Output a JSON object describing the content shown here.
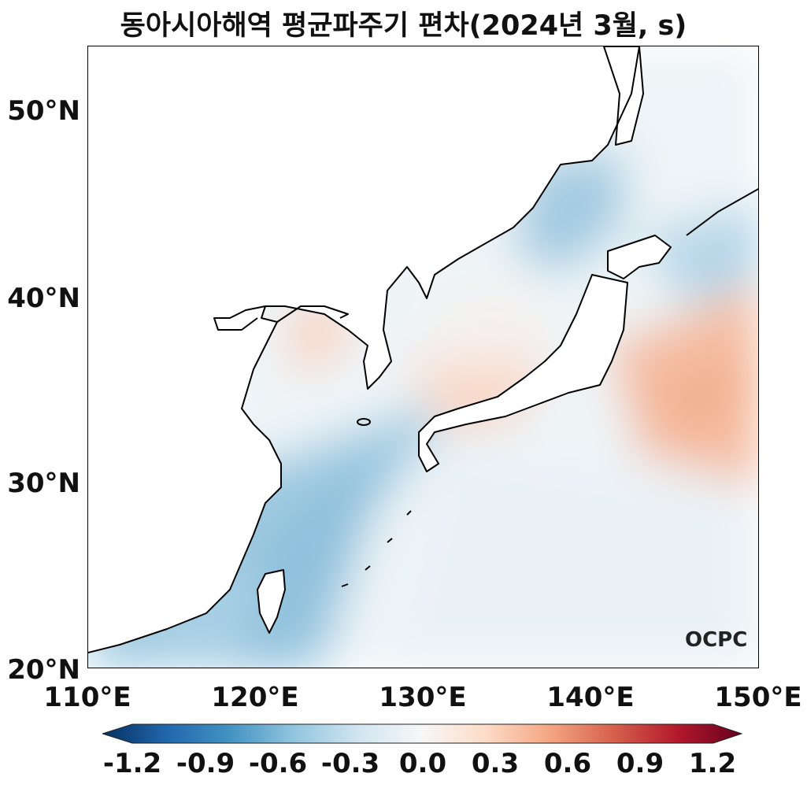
{
  "title": "동아시아해역 평균파주기 편차(2024년 3월, s)",
  "y_axis_labels": [
    {
      "value": 50,
      "text": "50°N"
    },
    {
      "value": 40,
      "text": "40°N"
    },
    {
      "value": 30,
      "text": "30°N"
    },
    {
      "value": 20,
      "text": "20°N"
    }
  ],
  "x_axis_labels": [
    {
      "value": 110,
      "text": "110°E"
    },
    {
      "value": 120,
      "text": "120°E"
    },
    {
      "value": 130,
      "text": "130°E"
    },
    {
      "value": 140,
      "text": "140°E"
    },
    {
      "value": 150,
      "text": "150°E"
    }
  ],
  "logo_text": "OCPC",
  "colorbar": {
    "min": -1.2,
    "max": 1.2,
    "ticks": [
      "-1.2",
      "-0.9",
      "-0.6",
      "-0.3",
      "0.0",
      "0.3",
      "0.6",
      "0.9",
      "1.2"
    ],
    "colors": [
      "#053061",
      "#2166ac",
      "#4393c3",
      "#92c5de",
      "#d1e5f0",
      "#f7f7f7",
      "#fddbc7",
      "#f4a582",
      "#d6604d",
      "#b2182b",
      "#67001f"
    ]
  },
  "map_extent": {
    "lon": [
      110,
      150
    ],
    "lat": [
      20,
      53.3
    ]
  }
}
